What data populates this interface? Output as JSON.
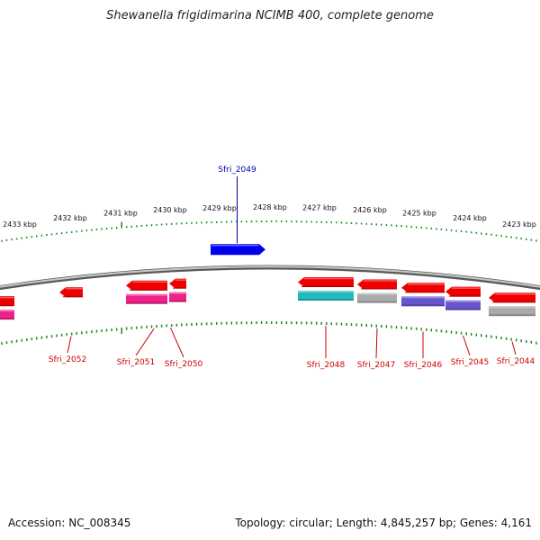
{
  "title": "Shewanella frigidimarina NCIMB 400, complete genome",
  "footer": {
    "accession": "Accession: NC_008345",
    "summary": "Topology: circular; Length: 4,845,257 bp; Genes: 4,161"
  },
  "colors": {
    "ticks": "#1f8a1f",
    "backbone": "#888888",
    "label_forward": "#0000aa",
    "label_reverse": "#cc0000"
  },
  "scale_labels": [
    "2433 kbp",
    "2432 kbp",
    "2431 kbp",
    "2430 kbp",
    "2429 kbp",
    "2428 kbp",
    "2427 kbp",
    "2426 kbp",
    "2425 kbp",
    "2424 kbp",
    "2423 kbp"
  ],
  "genes": [
    {
      "name": "",
      "strand": "reverse",
      "color": "#ee0000",
      "sub_color": "#ee2288"
    },
    {
      "name": "Sfri_2052",
      "strand": "reverse",
      "color": "#ee0000",
      "sub_color": ""
    },
    {
      "name": "Sfri_2051",
      "strand": "reverse",
      "color": "#ee0000",
      "sub_color": "#ee2288"
    },
    {
      "name": "Sfri_2050",
      "strand": "reverse",
      "color": "#ee0000",
      "sub_color": "#ee2288"
    },
    {
      "name": "Sfri_2049",
      "strand": "forward",
      "color": "#0000ee",
      "sub_color": ""
    },
    {
      "name": "Sfri_2048",
      "strand": "reverse",
      "color": "#ee0000",
      "sub_color": "#22bbbb"
    },
    {
      "name": "Sfri_2047",
      "strand": "reverse",
      "color": "#ee0000",
      "sub_color": "#aaaaaa"
    },
    {
      "name": "Sfri_2046",
      "strand": "reverse",
      "color": "#ee0000",
      "sub_color": "#6655cc"
    },
    {
      "name": "Sfri_2045",
      "strand": "reverse",
      "color": "#ee0000",
      "sub_color": "#6655cc"
    },
    {
      "name": "Sfri_2044",
      "strand": "reverse",
      "color": "#ee0000",
      "sub_color": "#aaaaaa"
    }
  ]
}
